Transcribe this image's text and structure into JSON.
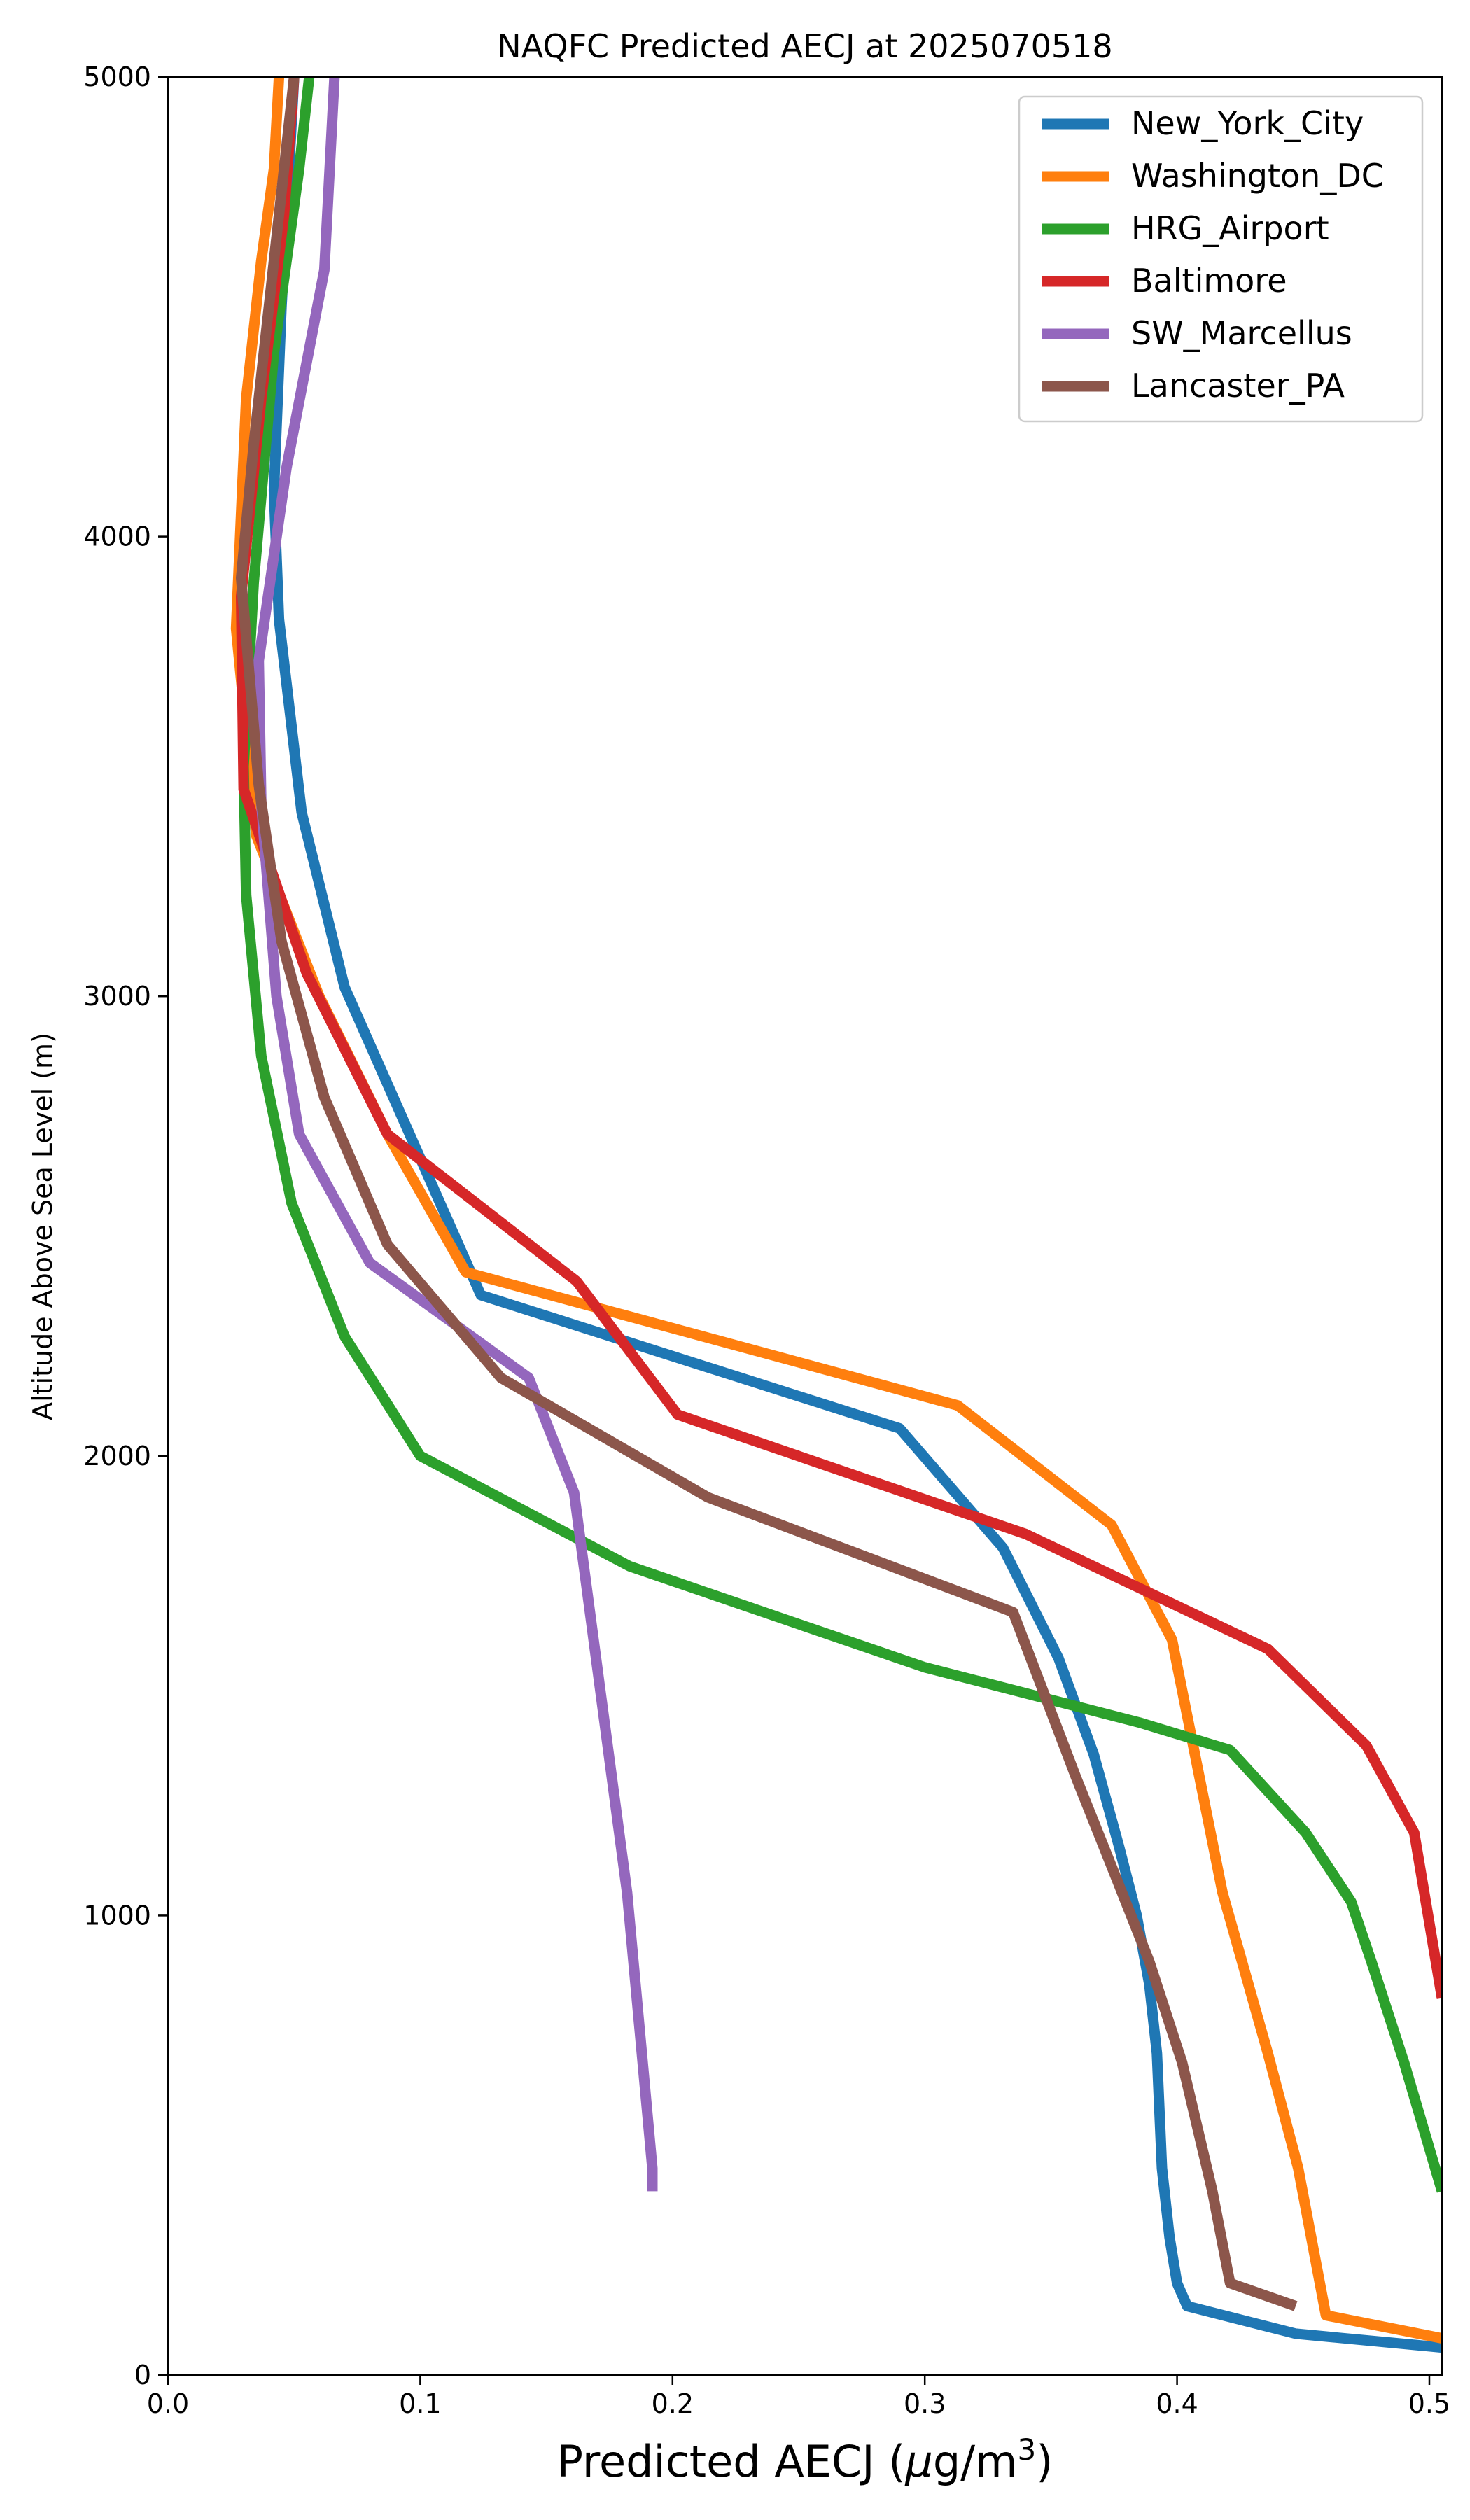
{
  "chart_data": {
    "type": "line",
    "title": "NAQFC Predicted AECJ at 2025070518",
    "xlabel": "Predicted AECJ (μg/m³)",
    "xlabel_main": "Predicted AECJ (",
    "xlabel_unit_mu": "μ",
    "xlabel_unit_rest": "g/m",
    "xlabel_unit_sup": "3",
    "xlabel_close": ")",
    "ylabel": "Altitude Above Sea Level (m)",
    "xlim": [
      0.0,
      0.505
    ],
    "ylim": [
      0,
      5000
    ],
    "xticks": [
      0.0,
      0.1,
      0.2,
      0.3,
      0.4,
      0.5
    ],
    "xtick_labels": [
      "0.0",
      "0.1",
      "0.2",
      "0.3",
      "0.4",
      "0.5"
    ],
    "yticks": [
      0,
      1000,
      2000,
      3000,
      4000,
      5000
    ],
    "ytick_labels": [
      "0",
      "1000",
      "2000",
      "3000",
      "4000",
      "5000"
    ],
    "grid": false,
    "legend_position": "top-right",
    "series": [
      {
        "name": "New_York_City",
        "color": "#1f77b4",
        "points": [
          [
            0.505,
            60
          ],
          [
            0.447,
            90
          ],
          [
            0.404,
            150
          ],
          [
            0.4,
            200
          ],
          [
            0.397,
            300
          ],
          [
            0.394,
            450
          ],
          [
            0.392,
            700
          ],
          [
            0.389,
            850
          ],
          [
            0.384,
            1000
          ],
          [
            0.377,
            1150
          ],
          [
            0.367,
            1350
          ],
          [
            0.353,
            1560
          ],
          [
            0.331,
            1800
          ],
          [
            0.29,
            2060
          ],
          [
            0.124,
            2350
          ],
          [
            0.07,
            3020
          ],
          [
            0.053,
            3400
          ],
          [
            0.044,
            3820
          ],
          [
            0.042,
            4100
          ],
          [
            0.045,
            4500
          ],
          [
            0.05,
            5000
          ]
        ]
      },
      {
        "name": "Washington_DC",
        "color": "#ff7f0e",
        "points": [
          [
            0.505,
            80
          ],
          [
            0.459,
            130
          ],
          [
            0.448,
            450
          ],
          [
            0.436,
            700
          ],
          [
            0.418,
            1050
          ],
          [
            0.398,
            1600
          ],
          [
            0.374,
            1850
          ],
          [
            0.313,
            2110
          ],
          [
            0.118,
            2400
          ],
          [
            0.087,
            2700
          ],
          [
            0.06,
            3000
          ],
          [
            0.035,
            3350
          ],
          [
            0.027,
            3800
          ],
          [
            0.031,
            4300
          ],
          [
            0.037,
            4600
          ],
          [
            0.042,
            4800
          ],
          [
            0.044,
            5000
          ]
        ]
      },
      {
        "name": "HRG_Airport",
        "color": "#2ca02c",
        "points": [
          [
            0.505,
            400
          ],
          [
            0.49,
            680
          ],
          [
            0.477,
            900
          ],
          [
            0.469,
            1030
          ],
          [
            0.451,
            1180
          ],
          [
            0.421,
            1360
          ],
          [
            0.385,
            1420
          ],
          [
            0.3,
            1540
          ],
          [
            0.183,
            1760
          ],
          [
            0.1,
            2000
          ],
          [
            0.07,
            2260
          ],
          [
            0.049,
            2550
          ],
          [
            0.037,
            2870
          ],
          [
            0.031,
            3220
          ],
          [
            0.03,
            3500
          ],
          [
            0.034,
            3900
          ],
          [
            0.042,
            4400
          ],
          [
            0.052,
            4800
          ],
          [
            0.056,
            5000
          ]
        ]
      },
      {
        "name": "Baltimore",
        "color": "#d62728",
        "points": [
          [
            0.505,
            820
          ],
          [
            0.494,
            1180
          ],
          [
            0.475,
            1370
          ],
          [
            0.436,
            1580
          ],
          [
            0.34,
            1830
          ],
          [
            0.202,
            2090
          ],
          [
            0.162,
            2380
          ],
          [
            0.087,
            2700
          ],
          [
            0.055,
            3050
          ],
          [
            0.03,
            3450
          ],
          [
            0.029,
            3870
          ],
          [
            0.037,
            4300
          ],
          [
            0.046,
            4700
          ],
          [
            0.05,
            5000
          ]
        ]
      },
      {
        "name": "SW_Marcellus",
        "color": "#9467bd",
        "points": [
          [
            0.192,
            400
          ],
          [
            0.192,
            450
          ],
          [
            0.182,
            1050
          ],
          [
            0.161,
            1920
          ],
          [
            0.143,
            2170
          ],
          [
            0.08,
            2420
          ],
          [
            0.052,
            2700
          ],
          [
            0.043,
            3000
          ],
          [
            0.037,
            3420
          ],
          [
            0.036,
            3730
          ],
          [
            0.047,
            4150
          ],
          [
            0.062,
            4580
          ],
          [
            0.066,
            5000
          ]
        ]
      },
      {
        "name": "Lancaster_PA",
        "color": "#8c564b",
        "points": [
          [
            0.447,
            150
          ],
          [
            0.421,
            200
          ],
          [
            0.414,
            400
          ],
          [
            0.402,
            680
          ],
          [
            0.389,
            900
          ],
          [
            0.376,
            1080
          ],
          [
            0.36,
            1300
          ],
          [
            0.335,
            1660
          ],
          [
            0.214,
            1910
          ],
          [
            0.132,
            2170
          ],
          [
            0.087,
            2460
          ],
          [
            0.062,
            2780
          ],
          [
            0.045,
            3120
          ],
          [
            0.036,
            3460
          ],
          [
            0.029,
            3910
          ],
          [
            0.034,
            4200
          ],
          [
            0.042,
            4600
          ],
          [
            0.05,
            5000
          ]
        ]
      }
    ]
  }
}
